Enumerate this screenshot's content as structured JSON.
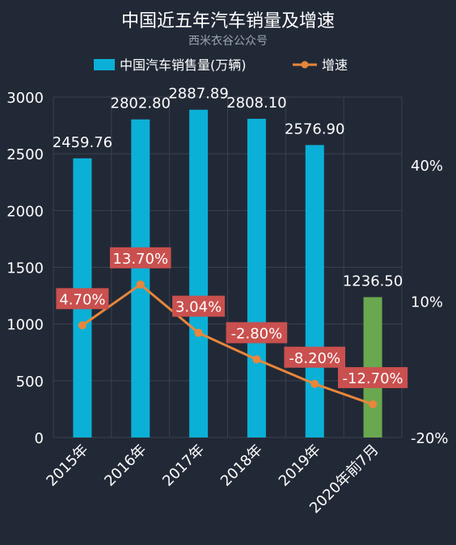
{
  "title": "中国近五年汽车销量及增速",
  "subtitle": "西米衣谷公众号",
  "legend": {
    "bar_label": "中国汽车销售量(万辆)",
    "line_label": "增速"
  },
  "colors": {
    "bar": "#0bb0d6",
    "bar_highlight": "#6aa84f",
    "line": "#e8863a",
    "label_bg": "#c9504e",
    "grid": "#39414f",
    "text": "#ffffff"
  },
  "chart_data": {
    "type": "bar",
    "categories": [
      "2015年",
      "2016年",
      "2017年",
      "2018年",
      "2019年",
      "2020年前7月"
    ],
    "series": [
      {
        "name": "中国汽车销售量(万辆)",
        "type": "bar",
        "axis": "left",
        "values": [
          2459.76,
          2802.8,
          2887.89,
          2808.1,
          2576.9,
          1236.5
        ],
        "labels": [
          "2459.76",
          "2802.80",
          "2887.89",
          "2808.10",
          "2576.90",
          "1236.50"
        ]
      },
      {
        "name": "增速",
        "type": "line",
        "axis": "right",
        "values": [
          4.7,
          13.7,
          3.04,
          -2.8,
          -8.2,
          -12.7
        ],
        "labels": [
          "4.70%",
          "13.70%",
          "3.04%",
          "-2.80%",
          "-8.20%",
          "-12.70%"
        ]
      }
    ],
    "y_left": {
      "min": 0,
      "max": 3000,
      "ticks": [
        0,
        500,
        1000,
        1500,
        2000,
        2500,
        3000
      ],
      "tick_labels": [
        "0",
        "500",
        "1000",
        "1500",
        "2000",
        "2500",
        "3000"
      ]
    },
    "y_right": {
      "min": -20,
      "max": 55,
      "ticks": [
        -20,
        10,
        40
      ],
      "tick_labels": [
        "-20%",
        "10%",
        "40%"
      ]
    },
    "grid": true,
    "legend_position": "top"
  }
}
